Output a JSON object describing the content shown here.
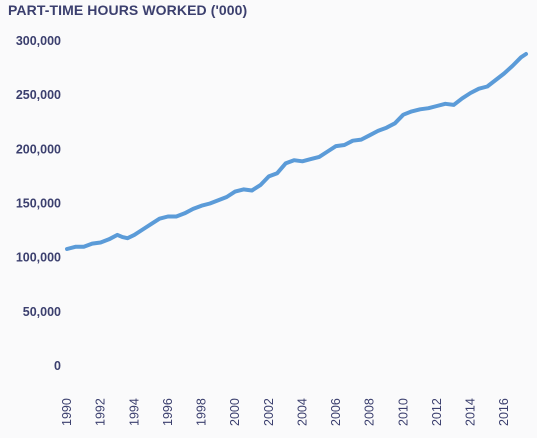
{
  "chart_data": {
    "type": "line",
    "title": "PART-TIME HOURS WORKED ('000)",
    "xlabel": "",
    "ylabel": "",
    "xlim": [
      1990,
      2017.3
    ],
    "ylim": [
      0,
      300000
    ],
    "grid": false,
    "line_color": "#5b9bd8",
    "text_color": "#3b3f6e",
    "y_ticks": [
      0,
      50000,
      100000,
      150000,
      200000,
      250000,
      300000
    ],
    "y_tick_labels": [
      "0",
      "50,000",
      "100,000",
      "150,000",
      "200,000",
      "250,000",
      "300,000"
    ],
    "x_ticks": [
      1990,
      1992,
      1994,
      1996,
      1998,
      2000,
      2002,
      2004,
      2006,
      2008,
      2010,
      2012,
      2014,
      2016
    ],
    "x_tick_labels": [
      "1990",
      "1992",
      "1994",
      "1996",
      "1998",
      "2000",
      "2002",
      "2004",
      "2006",
      "2008",
      "2010",
      "2012",
      "2014",
      "2016"
    ],
    "series": [
      {
        "name": "",
        "x": [
          1990.0,
          1990.5,
          1991.0,
          1991.5,
          1992.0,
          1992.5,
          1993.0,
          1993.3,
          1993.6,
          1994.0,
          1994.5,
          1995.0,
          1995.5,
          1996.0,
          1996.5,
          1997.0,
          1997.5,
          1998.0,
          1998.5,
          1999.0,
          1999.5,
          2000.0,
          2000.5,
          2001.0,
          2001.5,
          2002.0,
          2002.5,
          2003.0,
          2003.5,
          2004.0,
          2004.5,
          2005.0,
          2005.5,
          2006.0,
          2006.5,
          2007.0,
          2007.5,
          2008.0,
          2008.5,
          2009.0,
          2009.5,
          2010.0,
          2010.5,
          2011.0,
          2011.5,
          2012.0,
          2012.5,
          2013.0,
          2013.5,
          2014.0,
          2014.5,
          2015.0,
          2015.5,
          2016.0,
          2016.5,
          2017.0,
          2017.3
        ],
        "y": [
          108000,
          110000,
          110000,
          113000,
          114000,
          117000,
          121000,
          119000,
          118000,
          121000,
          126000,
          131000,
          136000,
          138000,
          138000,
          141000,
          145000,
          148000,
          150000,
          153000,
          156000,
          161000,
          163000,
          162000,
          167000,
          175000,
          178000,
          187000,
          190000,
          189000,
          191000,
          193000,
          198000,
          203000,
          204000,
          208000,
          209000,
          213000,
          217000,
          220000,
          224000,
          232000,
          235000,
          237000,
          238000,
          240000,
          242000,
          241000,
          247000,
          252000,
          256000,
          258000,
          264000,
          270000,
          277000,
          285000,
          288000
        ]
      }
    ]
  }
}
